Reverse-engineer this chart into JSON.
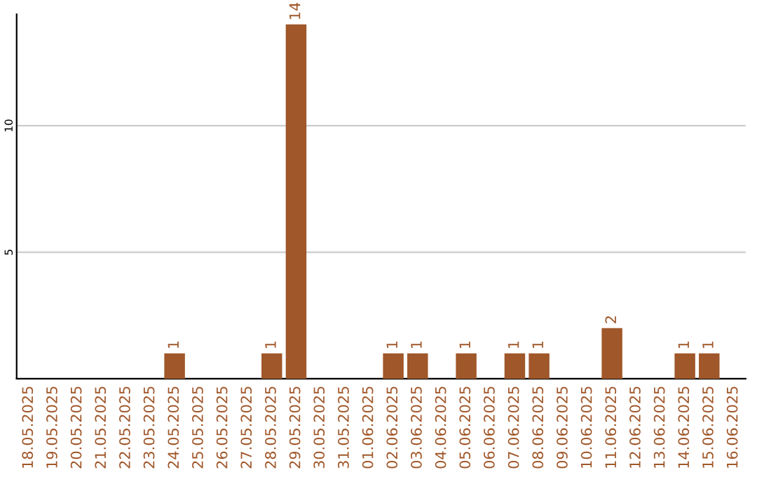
{
  "chart_data": {
    "type": "bar",
    "categories": [
      "18.05.2025",
      "19.05.2025",
      "20.05.2025",
      "21.05.2025",
      "22.05.2025",
      "23.05.2025",
      "24.05.2025",
      "25.05.2025",
      "26.05.2025",
      "27.05.2025",
      "28.05.2025",
      "29.05.2025",
      "30.05.2025",
      "31.05.2025",
      "01.06.2025",
      "02.06.2025",
      "03.06.2025",
      "04.06.2025",
      "05.06.2025",
      "06.06.2025",
      "07.06.2025",
      "08.06.2025",
      "09.06.2025",
      "10.06.2025",
      "11.06.2025",
      "12.06.2025",
      "13.06.2025",
      "14.06.2025",
      "15.06.2025",
      "16.06.2025"
    ],
    "values": [
      0,
      0,
      0,
      0,
      0,
      0,
      1,
      0,
      0,
      0,
      1,
      14,
      0,
      0,
      0,
      1,
      1,
      0,
      1,
      0,
      1,
      1,
      0,
      0,
      2,
      0,
      0,
      1,
      1,
      0
    ],
    "value_labels": [
      null,
      null,
      null,
      null,
      null,
      null,
      "1",
      null,
      null,
      null,
      "1",
      "14",
      null,
      null,
      null,
      "1",
      "1",
      null,
      "1",
      null,
      "1",
      "1",
      null,
      null,
      "2",
      null,
      null,
      "1",
      "1",
      null
    ],
    "color": "#a0572a",
    "ylim": [
      0,
      14.4
    ],
    "yticks": [
      5,
      10
    ],
    "grid": "y"
  }
}
